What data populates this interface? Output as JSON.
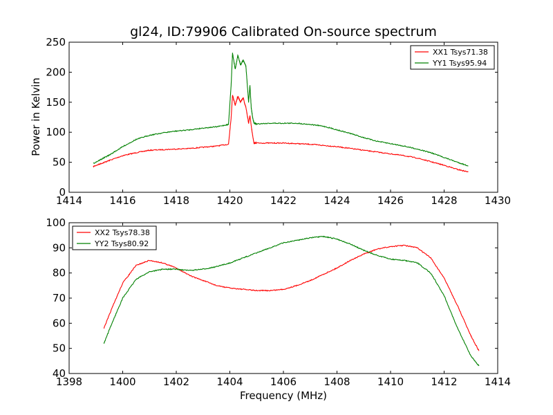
{
  "figure": {
    "title": "gl24, ID:79906 Calibrated On-source spectrum",
    "ylabel": "Power in Kelvin",
    "xlabel": "Frequency (MHz)"
  },
  "chart_data": [
    {
      "type": "line",
      "title": "gl24, ID:79906 Calibrated On-source spectrum",
      "ylabel": "Power in Kelvin",
      "xlabel": "",
      "xlim": [
        1414,
        1430
      ],
      "ylim": [
        0,
        250
      ],
      "xticks": [
        1414,
        1416,
        1418,
        1420,
        1422,
        1424,
        1426,
        1428,
        1430
      ],
      "yticks": [
        0,
        50,
        100,
        150,
        200,
        250
      ],
      "grid": false,
      "legend": "top-right",
      "series": [
        {
          "name": "XX1 Tsys71.38",
          "color": "#ff0000",
          "x": [
            1414.9,
            1415.2,
            1415.5,
            1416.0,
            1416.5,
            1417.0,
            1417.5,
            1418.0,
            1418.5,
            1419.0,
            1419.5,
            1419.95,
            1420.05,
            1420.1,
            1420.2,
            1420.3,
            1420.4,
            1420.5,
            1420.55,
            1420.6,
            1420.7,
            1420.75,
            1420.8,
            1420.85,
            1420.9,
            1421.0,
            1421.5,
            1422.0,
            1422.5,
            1423.0,
            1423.5,
            1424.0,
            1424.5,
            1425.0,
            1425.5,
            1426.0,
            1426.5,
            1427.0,
            1427.5,
            1428.0,
            1428.5,
            1428.9
          ],
          "y": [
            43,
            48,
            53,
            61,
            66,
            70,
            71,
            72,
            73,
            75,
            77,
            80,
            125,
            162,
            145,
            160,
            150,
            158,
            148,
            142,
            115,
            128,
            110,
            95,
            82,
            82,
            82,
            82,
            81,
            80,
            78,
            76,
            73,
            70,
            67,
            64,
            61,
            57,
            51,
            45,
            38,
            34
          ]
        },
        {
          "name": "YY1 Tsys95.94",
          "color": "#008000",
          "x": [
            1414.9,
            1415.2,
            1415.5,
            1416.0,
            1416.5,
            1417.0,
            1417.5,
            1418.0,
            1418.5,
            1419.0,
            1419.5,
            1419.95,
            1420.05,
            1420.1,
            1420.2,
            1420.3,
            1420.4,
            1420.5,
            1420.55,
            1420.6,
            1420.7,
            1420.75,
            1420.8,
            1420.85,
            1420.9,
            1421.0,
            1421.5,
            1422.0,
            1422.5,
            1423.0,
            1423.5,
            1424.0,
            1424.5,
            1425.0,
            1425.5,
            1426.0,
            1426.5,
            1427.0,
            1427.5,
            1428.0,
            1428.5,
            1428.9
          ],
          "y": [
            48,
            55,
            62,
            76,
            88,
            95,
            99,
            102,
            104,
            107,
            109,
            113,
            180,
            232,
            205,
            228,
            212,
            220,
            215,
            210,
            150,
            178,
            140,
            125,
            115,
            114,
            115,
            115,
            115,
            113,
            110,
            104,
            98,
            91,
            85,
            81,
            77,
            72,
            66,
            58,
            50,
            44
          ]
        }
      ]
    },
    {
      "type": "line",
      "title": "",
      "ylabel": "",
      "xlabel": "Frequency (MHz)",
      "xlim": [
        1398,
        1414
      ],
      "ylim": [
        40,
        100
      ],
      "xticks": [
        1398,
        1400,
        1402,
        1404,
        1406,
        1408,
        1410,
        1412,
        1414
      ],
      "yticks": [
        40,
        50,
        60,
        70,
        80,
        90,
        100
      ],
      "grid": false,
      "legend": "top-left",
      "series": [
        {
          "name": "XX2 Tsys78.38",
          "color": "#ff0000",
          "x": [
            1399.3,
            1399.6,
            1400.0,
            1400.5,
            1401.0,
            1401.5,
            1402.0,
            1402.5,
            1403.0,
            1403.5,
            1404.0,
            1404.5,
            1405.0,
            1405.5,
            1406.0,
            1406.5,
            1407.0,
            1407.5,
            1408.0,
            1408.5,
            1409.0,
            1409.5,
            1410.0,
            1410.5,
            1411.0,
            1411.5,
            1412.0,
            1412.5,
            1413.0,
            1413.3
          ],
          "y": [
            58,
            66,
            76,
            83,
            85,
            84,
            82,
            79,
            77,
            75,
            74,
            73.5,
            73,
            73,
            73.5,
            75,
            77,
            79.5,
            82,
            85,
            87.5,
            89.5,
            90.5,
            91,
            90,
            86,
            78,
            67,
            55,
            49
          ]
        },
        {
          "name": "YY2 Tsys80.92",
          "color": "#008000",
          "x": [
            1399.3,
            1399.6,
            1400.0,
            1400.5,
            1401.0,
            1401.5,
            1402.0,
            1402.5,
            1403.0,
            1403.5,
            1404.0,
            1404.5,
            1405.0,
            1405.5,
            1406.0,
            1406.5,
            1407.0,
            1407.5,
            1408.0,
            1408.5,
            1409.0,
            1409.5,
            1410.0,
            1410.5,
            1411.0,
            1411.5,
            1412.0,
            1412.5,
            1413.0,
            1413.3
          ],
          "y": [
            52,
            60,
            70,
            77.5,
            80.5,
            81.5,
            81.5,
            81,
            81.5,
            82.5,
            84,
            86,
            88,
            90,
            92,
            93,
            94,
            94.5,
            93.5,
            91.5,
            89,
            87,
            85.5,
            85,
            84,
            80,
            71,
            58,
            47,
            43
          ]
        }
      ]
    }
  ]
}
